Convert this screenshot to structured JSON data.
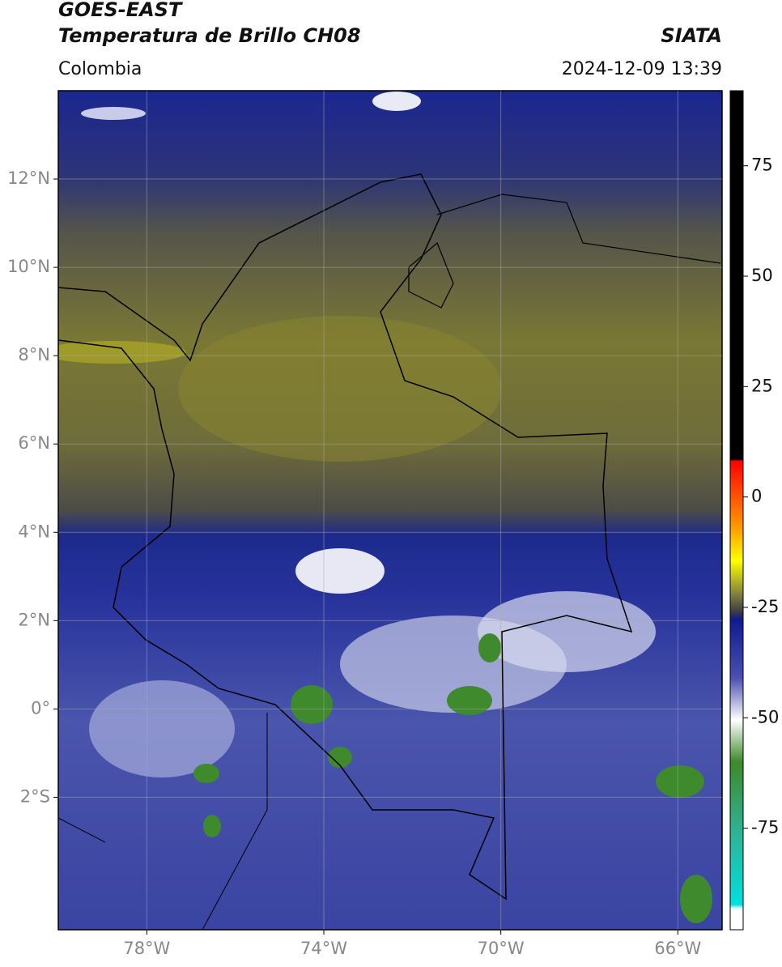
{
  "header": {
    "title": "GOES-EAST",
    "subtitle": "Temperatura de Brillo CH08",
    "source": "SIATA",
    "region": "Colombia",
    "datetime": "2024-12-09 13:39"
  },
  "map": {
    "xlim": [
      -80,
      -65
    ],
    "ylim": [
      -5,
      14
    ],
    "xticks": [
      {
        "value": -78,
        "label": "78°W"
      },
      {
        "value": -74,
        "label": "74°W"
      },
      {
        "value": -70,
        "label": "70°W"
      },
      {
        "value": -66,
        "label": "66°W"
      }
    ],
    "yticks": [
      {
        "value": 12,
        "label": "12°N"
      },
      {
        "value": 10,
        "label": "10°N"
      },
      {
        "value": 8,
        "label": "8°N"
      },
      {
        "value": 6,
        "label": "6°N"
      },
      {
        "value": 4,
        "label": "4°N"
      },
      {
        "value": 2,
        "label": "2°N"
      },
      {
        "value": 0,
        "label": "0°"
      },
      {
        "value": -2,
        "label": "2°S"
      }
    ],
    "grid": true
  },
  "colorbar": {
    "clim": [
      -98,
      92
    ],
    "ticks": [
      75,
      50,
      25,
      0,
      -25,
      -50,
      -75
    ]
  }
}
